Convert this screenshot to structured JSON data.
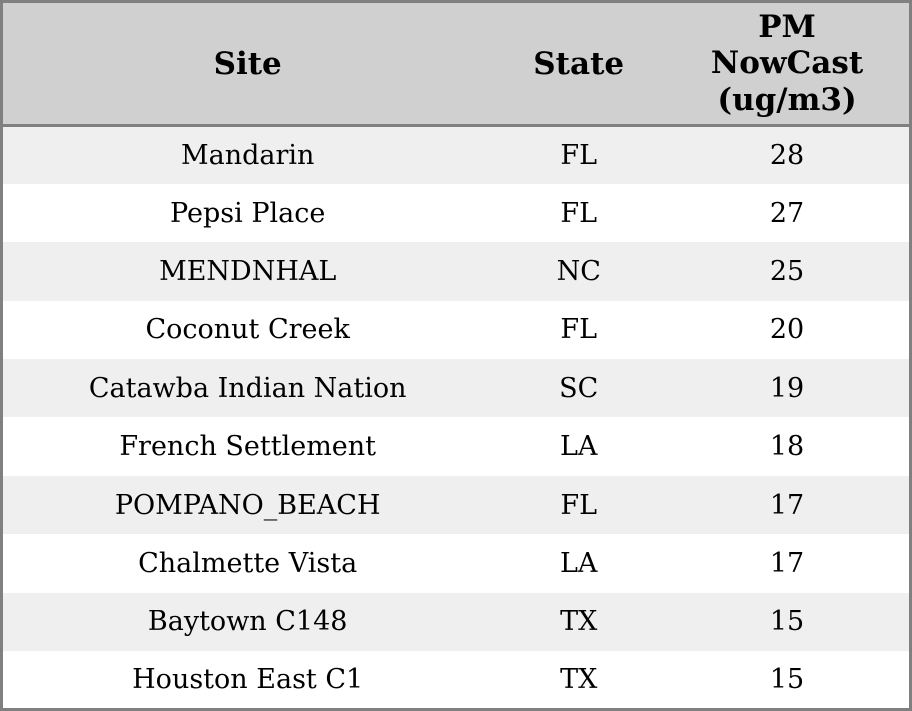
{
  "chart_data": {
    "type": "table",
    "title": "",
    "columns": [
      "Site",
      "State",
      "PM NowCast (ug/m3)"
    ],
    "header_labels": {
      "site": "Site",
      "state": "State",
      "pm": "PM\nNowCast\n(ug/m3)"
    },
    "rows": [
      {
        "site": "Mandarin",
        "state": "FL",
        "pm": 28
      },
      {
        "site": "Pepsi Place",
        "state": "FL",
        "pm": 27
      },
      {
        "site": "MENDNHAL",
        "state": "NC",
        "pm": 25
      },
      {
        "site": "Coconut Creek",
        "state": "FL",
        "pm": 20
      },
      {
        "site": "Catawba Indian Nation",
        "state": "SC",
        "pm": 19
      },
      {
        "site": "French Settlement",
        "state": "LA",
        "pm": 18
      },
      {
        "site": "POMPANO_BEACH",
        "state": "FL",
        "pm": 17
      },
      {
        "site": "Chalmette Vista",
        "state": "LA",
        "pm": 17
      },
      {
        "site": "Baytown C148",
        "state": "TX",
        "pm": 15
      },
      {
        "site": "Houston East C1",
        "state": "TX",
        "pm": 15
      }
    ]
  },
  "colors": {
    "header_bg": "#d0d0d0",
    "row_odd_bg": "#efefef",
    "row_even_bg": "#ffffff",
    "border": "#808080",
    "text": "#000000"
  }
}
